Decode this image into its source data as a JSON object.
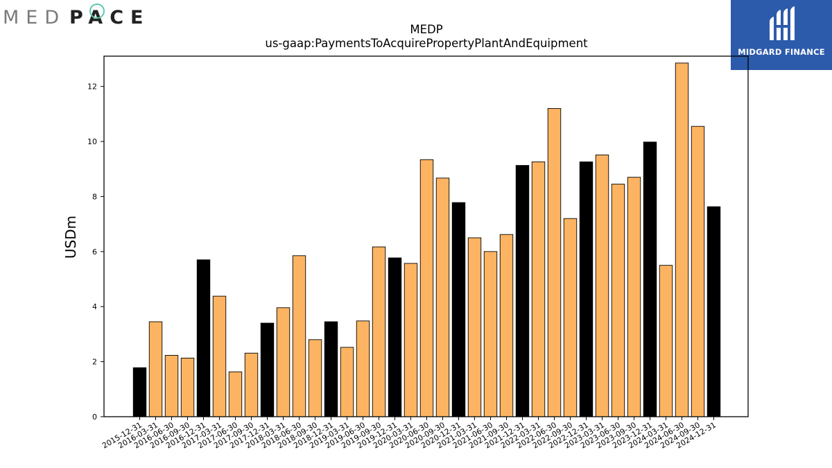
{
  "branding": {
    "company_logo_text": "MEDPACE",
    "publisher_logo_text": "MIDGARD FINANCE"
  },
  "colors": {
    "bar_fill": "#fdb462",
    "bar_fill_year_end": "#000000",
    "bar_edge": "#000000",
    "publisher_bg": "#2d5bab"
  },
  "chart_data": {
    "type": "bar",
    "title": "MEDP",
    "subtitle": "us-gaap:PaymentsToAcquirePropertyPlantAndEquipment",
    "xlabel": "",
    "ylabel": "USDm",
    "ylim": [
      0,
      13.1
    ],
    "yticks": [
      0,
      2,
      4,
      6,
      8,
      10,
      12
    ],
    "grid": false,
    "categories": [
      "2015-12-31",
      "2016-03-31",
      "2016-06-30",
      "2016-09-30",
      "2016-12-31",
      "2017-03-31",
      "2017-06-30",
      "2017-09-30",
      "2017-12-31",
      "2018-03-31",
      "2018-06-30",
      "2018-09-30",
      "2018-12-31",
      "2019-03-31",
      "2019-06-30",
      "2019-09-30",
      "2019-12-31",
      "2020-03-31",
      "2020-06-30",
      "2020-09-30",
      "2020-12-31",
      "2021-03-31",
      "2021-06-30",
      "2021-09-30",
      "2021-12-31",
      "2022-03-31",
      "2022-06-30",
      "2022-09-30",
      "2022-12-31",
      "2023-03-31",
      "2023-06-30",
      "2023-09-30",
      "2023-12-31",
      "2024-03-31",
      "2024-06-30",
      "2024-09-30",
      "2024-12-31"
    ],
    "values": [
      1.78,
      3.45,
      2.23,
      2.13,
      5.7,
      4.38,
      1.63,
      2.31,
      3.4,
      3.96,
      5.85,
      2.8,
      3.45,
      2.52,
      3.48,
      6.17,
      5.77,
      5.57,
      9.34,
      8.67,
      7.78,
      6.5,
      6.0,
      6.62,
      9.13,
      9.26,
      11.2,
      7.2,
      9.26,
      9.51,
      8.45,
      8.7,
      9.98,
      5.5,
      12.85,
      10.55,
      7.63
    ],
    "year_end_highlight": true
  }
}
